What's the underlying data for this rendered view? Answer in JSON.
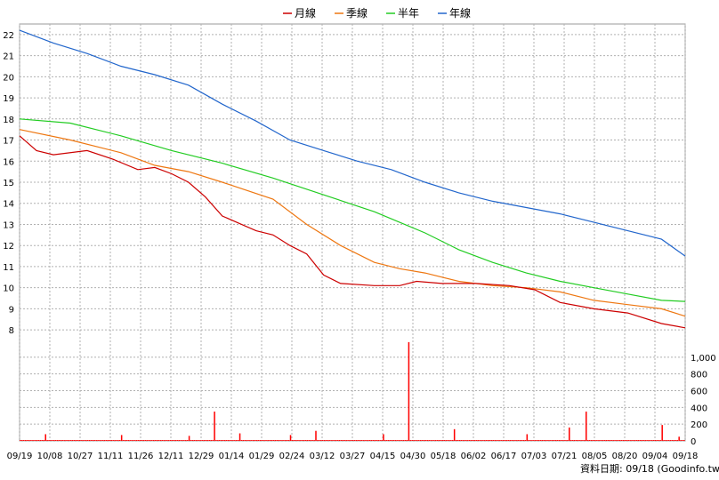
{
  "chart_data": {
    "type": "candlestick-volume",
    "legend": [
      {
        "name": "月線",
        "color": "#cc0000"
      },
      {
        "name": "季線",
        "color": "#ee7711"
      },
      {
        "name": "半年",
        "color": "#22cc22"
      },
      {
        "name": "年線",
        "color": "#2266cc"
      }
    ],
    "legend_position": "top-center",
    "grid": true,
    "x_labels": [
      "09/19",
      "10/08",
      "10/27",
      "11/11",
      "11/26",
      "12/11",
      "12/29",
      "01/14",
      "01/29",
      "02/24",
      "03/12",
      "03/27",
      "04/15",
      "04/30",
      "05/18",
      "06/02",
      "06/17",
      "07/03",
      "07/21",
      "08/05",
      "08/20",
      "09/04",
      "09/18"
    ],
    "price_axis": {
      "ylim": [
        7.5,
        22.5
      ],
      "ticks": [
        8,
        9,
        10,
        11,
        12,
        13,
        14,
        15,
        16,
        17,
        18,
        19,
        20,
        21,
        22
      ]
    },
    "volume_axis": {
      "ylim": [
        0,
        1200
      ],
      "ticks": [
        0,
        200,
        400,
        600,
        800,
        "1,000"
      ],
      "tick_values": [
        0,
        200,
        400,
        600,
        800,
        1000
      ]
    },
    "series": [
      {
        "name": "年線",
        "points": [
          [
            0,
            22.2
          ],
          [
            20,
            21.6
          ],
          [
            40,
            21.1
          ],
          [
            60,
            20.5
          ],
          [
            80,
            20.1
          ],
          [
            100,
            19.6
          ],
          [
            120,
            18.7
          ],
          [
            140,
            17.9
          ],
          [
            160,
            17.0
          ],
          [
            180,
            16.5
          ],
          [
            200,
            16.0
          ],
          [
            220,
            15.6
          ],
          [
            240,
            15.0
          ],
          [
            260,
            14.5
          ],
          [
            280,
            14.1
          ],
          [
            300,
            13.8
          ],
          [
            320,
            13.5
          ],
          [
            340,
            13.1
          ],
          [
            360,
            12.7
          ],
          [
            380,
            12.3
          ],
          [
            394,
            11.5
          ]
        ]
      },
      {
        "name": "半年",
        "points": [
          [
            0,
            18.0
          ],
          [
            30,
            17.8
          ],
          [
            60,
            17.2
          ],
          [
            90,
            16.5
          ],
          [
            120,
            15.9
          ],
          [
            150,
            15.2
          ],
          [
            180,
            14.4
          ],
          [
            210,
            13.6
          ],
          [
            240,
            12.6
          ],
          [
            260,
            11.8
          ],
          [
            280,
            11.2
          ],
          [
            300,
            10.7
          ],
          [
            320,
            10.3
          ],
          [
            340,
            10.0
          ],
          [
            360,
            9.7
          ],
          [
            380,
            9.4
          ],
          [
            394,
            9.35
          ]
        ]
      },
      {
        "name": "季線",
        "points": [
          [
            0,
            17.5
          ],
          [
            30,
            17.0
          ],
          [
            60,
            16.4
          ],
          [
            80,
            15.8
          ],
          [
            100,
            15.5
          ],
          [
            120,
            15.0
          ],
          [
            150,
            14.2
          ],
          [
            170,
            13.0
          ],
          [
            190,
            12.0
          ],
          [
            210,
            11.2
          ],
          [
            225,
            10.9
          ],
          [
            240,
            10.7
          ],
          [
            260,
            10.3
          ],
          [
            280,
            10.1
          ],
          [
            300,
            10.0
          ],
          [
            320,
            9.8
          ],
          [
            340,
            9.4
          ],
          [
            360,
            9.2
          ],
          [
            380,
            9.0
          ],
          [
            394,
            8.65
          ]
        ]
      },
      {
        "name": "月線",
        "points": [
          [
            0,
            17.2
          ],
          [
            10,
            16.5
          ],
          [
            20,
            16.3
          ],
          [
            40,
            16.5
          ],
          [
            55,
            16.1
          ],
          [
            70,
            15.6
          ],
          [
            80,
            15.7
          ],
          [
            90,
            15.4
          ],
          [
            100,
            15.0
          ],
          [
            110,
            14.3
          ],
          [
            120,
            13.4
          ],
          [
            140,
            12.7
          ],
          [
            150,
            12.5
          ],
          [
            160,
            12.0
          ],
          [
            170,
            11.6
          ],
          [
            180,
            10.6
          ],
          [
            190,
            10.2
          ],
          [
            210,
            10.1
          ],
          [
            225,
            10.1
          ],
          [
            235,
            10.3
          ],
          [
            250,
            10.2
          ],
          [
            270,
            10.2
          ],
          [
            290,
            10.1
          ],
          [
            305,
            9.9
          ],
          [
            320,
            9.3
          ],
          [
            340,
            9.0
          ],
          [
            360,
            8.8
          ],
          [
            380,
            8.3
          ],
          [
            394,
            8.1
          ]
        ]
      }
    ],
    "volume": {
      "baseline": [
        [
          0,
          10
        ],
        [
          394,
          10
        ]
      ],
      "spikes": [
        [
          15,
          80
        ],
        [
          60,
          70
        ],
        [
          100,
          60
        ],
        [
          115,
          350
        ],
        [
          130,
          90
        ],
        [
          160,
          70
        ],
        [
          175,
          120
        ],
        [
          215,
          80
        ],
        [
          230,
          1180
        ],
        [
          257,
          140
        ],
        [
          300,
          80
        ],
        [
          325,
          160
        ],
        [
          335,
          350
        ],
        [
          380,
          190
        ],
        [
          390,
          50
        ]
      ]
    },
    "candles": {
      "up_color": "#ff0000",
      "down_color": "#00cc00"
    }
  },
  "credit": "資料日期: 09/18 (Goodinfo.tw)"
}
